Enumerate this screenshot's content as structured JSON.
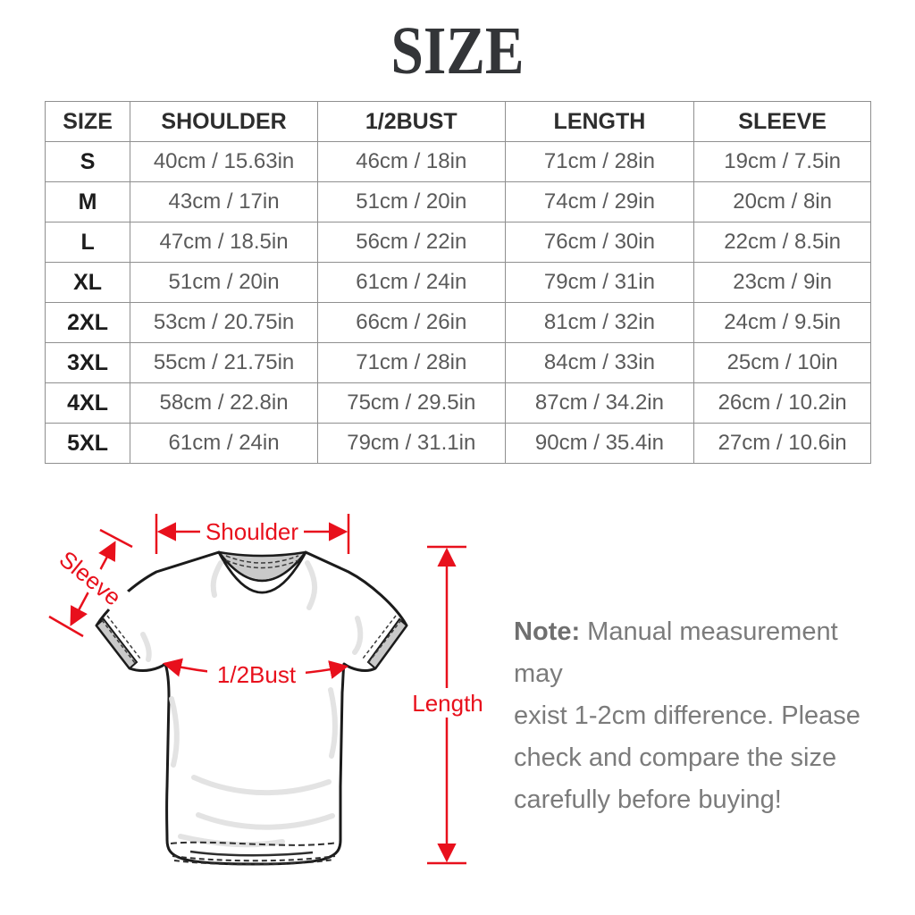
{
  "title": "SIZE",
  "table": {
    "headers": [
      "SIZE",
      "SHOULDER",
      "1/2BUST",
      "LENGTH",
      "SLEEVE"
    ],
    "rows": [
      [
        "S",
        "40cm / 15.63in",
        "46cm / 18in",
        "71cm / 28in",
        "19cm / 7.5in"
      ],
      [
        "M",
        "43cm / 17in",
        "51cm / 20in",
        "74cm / 29in",
        "20cm / 8in"
      ],
      [
        "L",
        "47cm / 18.5in",
        "56cm / 22in",
        "76cm / 30in",
        "22cm / 8.5in"
      ],
      [
        "XL",
        "51cm / 20in",
        "61cm / 24in",
        "79cm / 31in",
        "23cm / 9in"
      ],
      [
        "2XL",
        "53cm / 20.75in",
        "66cm / 26in",
        "81cm / 32in",
        "24cm / 9.5in"
      ],
      [
        "3XL",
        "55cm / 21.75in",
        "71cm / 28in",
        "84cm / 33in",
        "25cm / 10in"
      ],
      [
        "4XL",
        "58cm / 22.8in",
        "75cm / 29.5in",
        "87cm / 34.2in",
        "26cm / 10.2in"
      ],
      [
        "5XL",
        "61cm / 24in",
        "79cm / 31.1in",
        "90cm / 35.4in",
        "27cm / 10.6in"
      ]
    ]
  },
  "diagram": {
    "labels": {
      "shoulder": "Shoulder",
      "sleeve": "Sleeve",
      "bust": "1/2Bust",
      "length": "Length"
    }
  },
  "note": {
    "label": "Note:",
    "line1": " Manual measurement may",
    "line2": "exist 1-2cm difference. Please",
    "line3": "check and compare the size",
    "line4": "carefully before buying!"
  },
  "colors": {
    "accent_red": "#e8101c",
    "title_dark": "#333538",
    "header_text": "#2d2d2d",
    "cell_text": "#5a5a5a",
    "note_gray": "#7b7b7b",
    "table_border": "#8f8f8f",
    "shirt_outline": "#1b1b1b",
    "shirt_shade": "#c9c9c9",
    "wrinkle_gray": "#e2e2e2"
  }
}
